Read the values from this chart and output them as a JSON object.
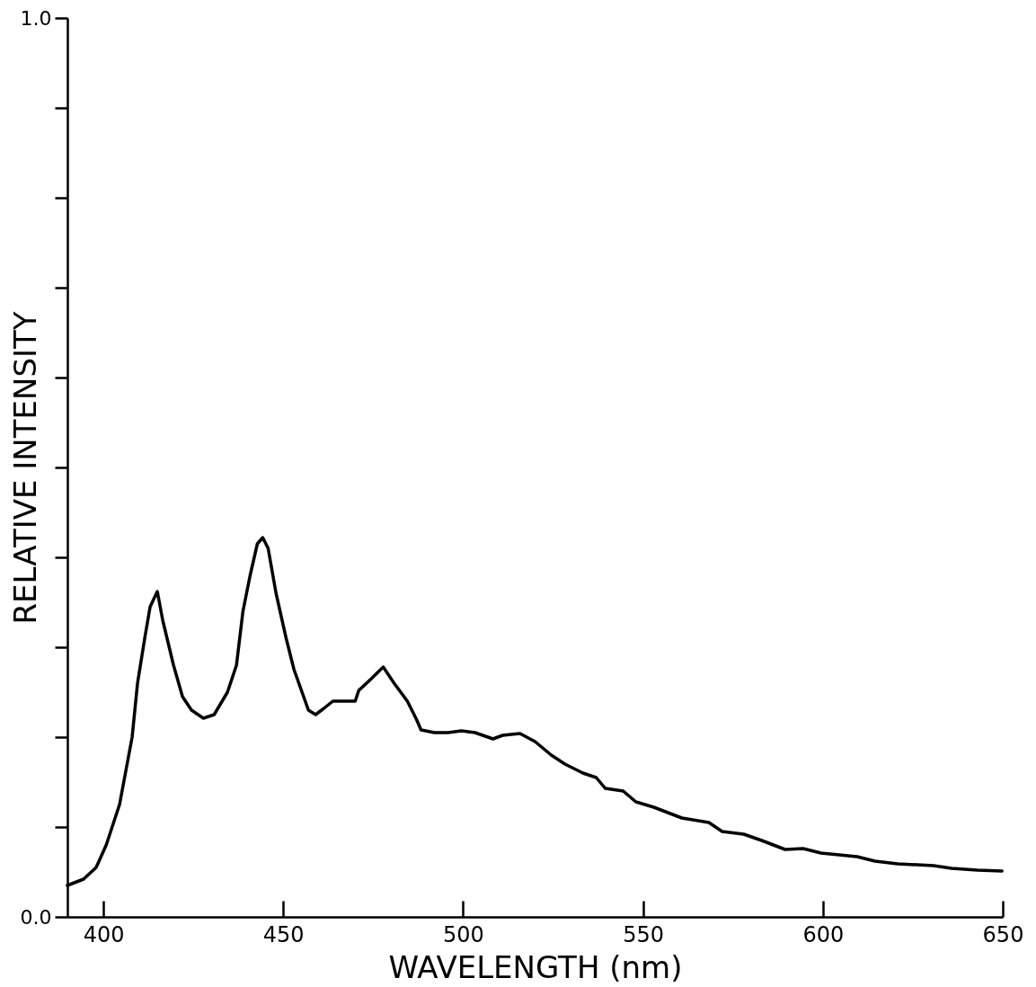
{
  "chart_data": {
    "type": "line",
    "xlabel": "WAVELENGTH (nm)",
    "ylabel": "RELATIVE  INTENSITY",
    "x": [
      390,
      394.5,
      398,
      400.8,
      404.5,
      408,
      409.5,
      411.5,
      413,
      415,
      416.5,
      419.5,
      422,
      424.5,
      427.8,
      430.8,
      434.5,
      437,
      438.8,
      440.8,
      442.8,
      444.3,
      445.8,
      448,
      450.8,
      453,
      457,
      459,
      461.3,
      463.8,
      467,
      470,
      471,
      474.5,
      477.8,
      480.8,
      484.5,
      487,
      488.3,
      492,
      495.8,
      499.5,
      503.3,
      508.3,
      511,
      515.8,
      520,
      524.5,
      528.3,
      533.3,
      537,
      539.5,
      544.5,
      548,
      553,
      560.8,
      568.3,
      572,
      578,
      583,
      589.5,
      594.5,
      599.5,
      609.5,
      614.5,
      620.8,
      630.8,
      635.8,
      643,
      649.8
    ],
    "series": [
      {
        "color": "#000000",
        "values": [
          0.035,
          0.042,
          0.055,
          0.08,
          0.125,
          0.2,
          0.26,
          0.31,
          0.345,
          0.362,
          0.33,
          0.28,
          0.245,
          0.23,
          0.221,
          0.225,
          0.25,
          0.28,
          0.34,
          0.38,
          0.415,
          0.422,
          0.41,
          0.36,
          0.31,
          0.275,
          0.23,
          0.225,
          0.232,
          0.24,
          0.24,
          0.24,
          0.252,
          0.265,
          0.278,
          0.26,
          0.24,
          0.22,
          0.208,
          0.205,
          0.205,
          0.207,
          0.205,
          0.198,
          0.202,
          0.204,
          0.195,
          0.18,
          0.17,
          0.16,
          0.155,
          0.143,
          0.14,
          0.128,
          0.122,
          0.11,
          0.105,
          0.095,
          0.092,
          0.085,
          0.075,
          0.076,
          0.071,
          0.067,
          0.062,
          0.059,
          0.057,
          0.054,
          0.052,
          0.051
        ]
      }
    ],
    "xlim": [
      390,
      650
    ],
    "xticks": [
      400,
      450,
      500,
      550,
      600,
      650
    ],
    "ylim": [
      0,
      1
    ],
    "yticks": [
      {
        "value": 0,
        "label": "0.0"
      },
      {
        "value": 0.1,
        "label": null
      },
      {
        "value": 0.2,
        "label": null
      },
      {
        "value": 0.3,
        "label": null
      },
      {
        "value": 0.4,
        "label": null
      },
      {
        "value": 0.5,
        "label": null
      },
      {
        "value": 0.6,
        "label": null
      },
      {
        "value": 0.7,
        "label": null
      },
      {
        "value": 0.8,
        "label": null
      },
      {
        "value": 0.9,
        "label": null
      },
      {
        "value": 1,
        "label": "1.0"
      }
    ],
    "grid": false,
    "marker": "none",
    "line_style": "solid"
  }
}
